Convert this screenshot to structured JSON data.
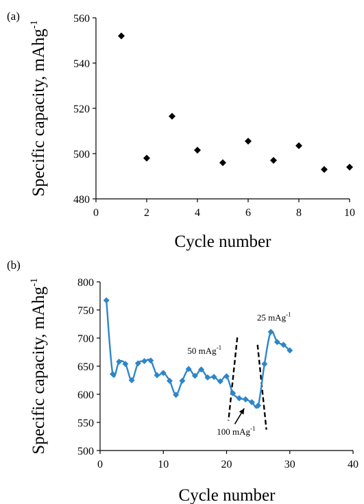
{
  "chart_data": [
    {
      "type": "scatter",
      "panel_label": "(a)",
      "xlabel": "Cycle number",
      "ylabel": "Specific capacity, mAhg",
      "ylabel_superscript": "-1",
      "xlim": [
        0,
        10
      ],
      "ylim": [
        480,
        560
      ],
      "xticks": [
        "0",
        "2",
        "4",
        "6",
        "8",
        "10"
      ],
      "yticks": [
        "480",
        "500",
        "520",
        "540",
        "560"
      ],
      "grid": false,
      "legend": "none",
      "marker": "diamond",
      "color": "#000000",
      "series": [
        {
          "x": [
            1,
            2,
            3,
            4,
            5,
            6,
            7,
            8,
            9,
            10
          ],
          "values": [
            552,
            498,
            516.5,
            501.5,
            496,
            505.5,
            497,
            503.5,
            493,
            494
          ]
        }
      ]
    },
    {
      "type": "line",
      "panel_label": "(b)",
      "xlabel": "Cycle number",
      "ylabel": "Specific capacity, mAhg",
      "ylabel_superscript": "-1",
      "xlim": [
        0,
        40
      ],
      "ylim": [
        500,
        800
      ],
      "xticks": [
        "0",
        "10",
        "20",
        "30",
        "40"
      ],
      "yticks": [
        "500",
        "550",
        "600",
        "650",
        "700",
        "750",
        "800"
      ],
      "grid": false,
      "legend": "none",
      "marker": "diamond",
      "color": "#2e86c8",
      "series": [
        {
          "x": [
            1,
            2,
            3,
            4,
            5,
            6,
            7,
            8,
            9,
            10,
            11,
            12,
            13,
            14,
            15,
            16,
            17,
            18,
            19,
            20,
            21,
            22,
            23,
            24,
            25,
            26,
            27,
            28,
            29,
            30
          ],
          "values": [
            767,
            636,
            658,
            654,
            625,
            655,
            659,
            660,
            634,
            638,
            624,
            599,
            624,
            645,
            633,
            644,
            630,
            631,
            623,
            632,
            602,
            593,
            591,
            586,
            580,
            654,
            711,
            693,
            688,
            678
          ]
        }
      ],
      "annotations": [
        {
          "text": "50 mAg",
          "sup": "-1",
          "x": 16.5,
          "y": 672
        },
        {
          "text": "25 mAg",
          "sup": "-1",
          "x": 27.5,
          "y": 731
        },
        {
          "text": "100 mAg",
          "sup": "-1",
          "x": 21.5,
          "y": 528
        }
      ],
      "dividers": [
        {
          "x1": 21.7,
          "y1": 701,
          "x2": 20.3,
          "y2": 553
        },
        {
          "x1": 24.9,
          "y1": 688,
          "x2": 26.3,
          "y2": 537
        }
      ],
      "arrow": {
        "from": [
          21.3,
          547
        ],
        "to": [
          22.8,
          575
        ]
      }
    }
  ]
}
